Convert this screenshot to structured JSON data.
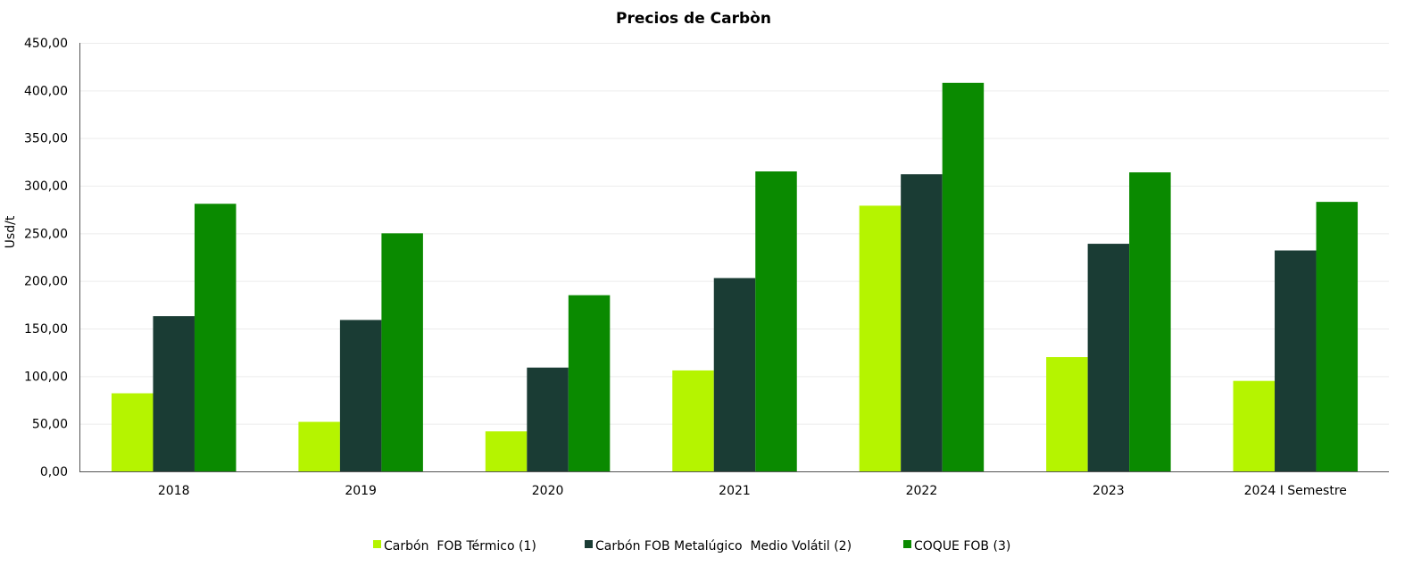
{
  "chart_data": {
    "type": "bar",
    "title": "Precios de Carbòn",
    "xlabel": "",
    "ylabel": "Usd/t",
    "ylim": [
      0,
      450
    ],
    "yticks": [
      "0,00",
      "50,00",
      "100,00",
      "150,00",
      "200,00",
      "250,00",
      "300,00",
      "350,00",
      "400,00",
      "450,00"
    ],
    "categories": [
      "2018",
      "2019",
      "2020",
      "2021",
      "2022",
      "2023",
      "2024 I Semestre"
    ],
    "series": [
      {
        "name": "Carbón  FOB Térmico (1)",
        "color": "#b5f400",
        "values": [
          82,
          52,
          42,
          106,
          279,
          120,
          95
        ]
      },
      {
        "name": "Carbón FOB Metalúgico  Medio Volátil (2)",
        "color": "#1a3c34",
        "values": [
          163,
          159,
          109,
          203,
          312,
          239,
          232
        ]
      },
      {
        "name": "COQUE FOB (3)",
        "color": "#0a8a00",
        "values": [
          281,
          250,
          185,
          315,
          408,
          314,
          283
        ]
      }
    ],
    "grid": true,
    "legend_position": "bottom"
  }
}
